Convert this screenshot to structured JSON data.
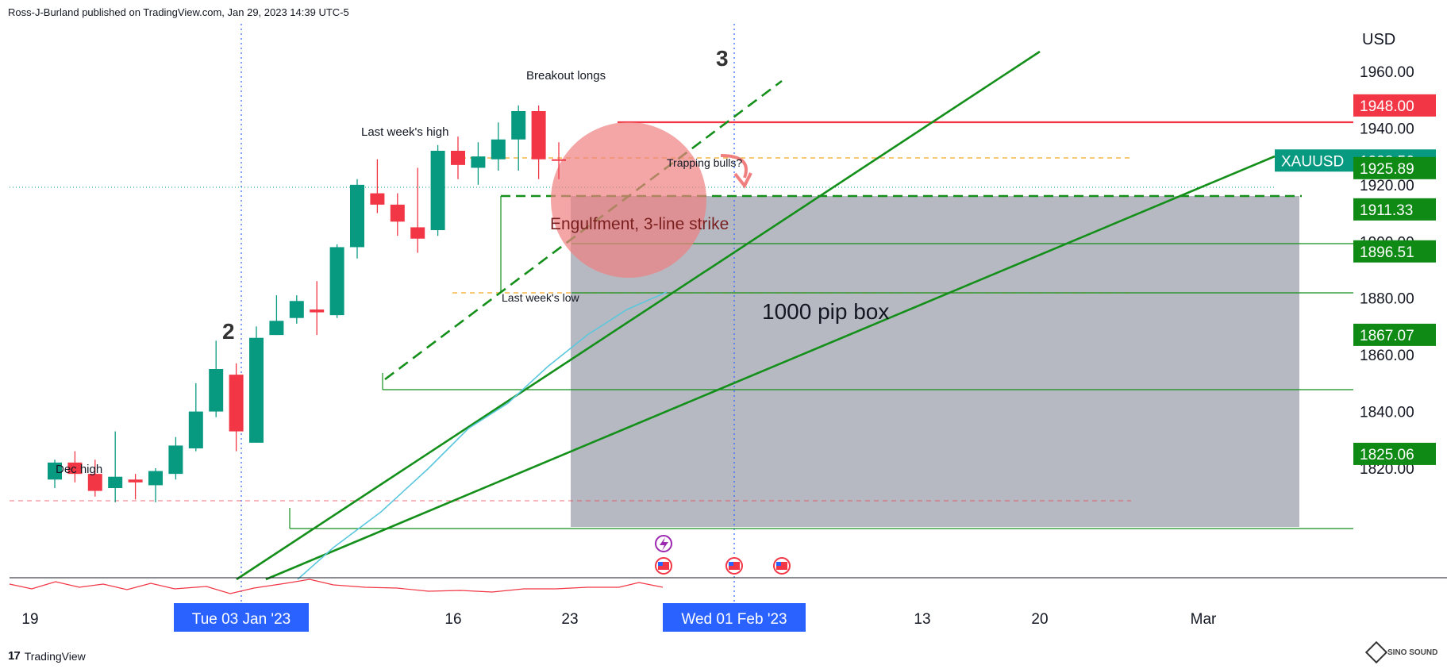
{
  "header": {
    "byline": "Ross-J-Burland published on TradingView.com, Jan 29, 2023 14:39 UTC-5"
  },
  "footer": {
    "logo_text": "TradingView",
    "logo_mark": "17",
    "watermark_text": "SINO SOUND"
  },
  "colors": {
    "bull": "#089981",
    "bear": "#f23645",
    "trend_green": "#138f1a",
    "ma_line": "#5bc7dd",
    "box_gray": "#b2b5be",
    "circle": "#f08080",
    "orange_dash": "#f5a623",
    "red_line": "#f23645",
    "blue_dot": "#2962ff",
    "axis_text": "#131722"
  },
  "chart_data": {
    "type": "candlestick",
    "symbol": "XAUUSD",
    "currency": "USD",
    "ylim": [
      1812,
      1975
    ],
    "y_ticks": [
      1820,
      1840,
      1860,
      1880,
      1900,
      1920,
      1940,
      1960
    ],
    "y_tick_labels": [
      "1820.00",
      "1840.00",
      "1860.00",
      "1880.00",
      "1900.00",
      "1920.00",
      "1940.00",
      "1960.00"
    ],
    "x_tick_labels": [
      "19",
      "16",
      "23",
      "13",
      "20",
      "Mar"
    ],
    "x_highlight_labels": [
      "Tue 03 Jan '23",
      "Wed 01 Feb '23"
    ],
    "candles": [
      {
        "date": "2022-12-20",
        "o": 1816,
        "h": 1823,
        "l": 1813,
        "c": 1822
      },
      {
        "date": "2022-12-21",
        "o": 1822,
        "h": 1826,
        "l": 1815,
        "c": 1818
      },
      {
        "date": "2022-12-22",
        "o": 1818,
        "h": 1823,
        "l": 1810,
        "c": 1812
      },
      {
        "date": "2022-12-27",
        "o": 1813,
        "h": 1833,
        "l": 1808,
        "c": 1817
      },
      {
        "date": "2022-12-28",
        "o": 1816,
        "h": 1818,
        "l": 1809,
        "c": 1815
      },
      {
        "date": "2022-12-29",
        "o": 1814,
        "h": 1820,
        "l": 1808,
        "c": 1819
      },
      {
        "date": "2022-12-30",
        "o": 1818,
        "h": 1831,
        "l": 1816,
        "c": 1828
      },
      {
        "date": "2023-01-03",
        "o": 1827,
        "h": 1850,
        "l": 1826,
        "c": 1840
      },
      {
        "date": "2023-01-04",
        "o": 1840,
        "h": 1865,
        "l": 1838,
        "c": 1855
      },
      {
        "date": "2023-01-05",
        "o": 1853,
        "h": 1857,
        "l": 1826,
        "c": 1833
      },
      {
        "date": "2023-01-06",
        "o": 1829,
        "h": 1870,
        "l": 1829,
        "c": 1866
      },
      {
        "date": "2023-01-09",
        "o": 1867,
        "h": 1881,
        "l": 1867,
        "c": 1872
      },
      {
        "date": "2023-01-10",
        "o": 1873,
        "h": 1881,
        "l": 1871,
        "c": 1879
      },
      {
        "date": "2023-01-11",
        "o": 1876,
        "h": 1886,
        "l": 1867,
        "c": 1875
      },
      {
        "date": "2023-01-12",
        "o": 1874,
        "h": 1899,
        "l": 1873,
        "c": 1898
      },
      {
        "date": "2023-01-13",
        "o": 1898,
        "h": 1922,
        "l": 1894,
        "c": 1920
      },
      {
        "date": "2023-01-16",
        "o": 1917,
        "h": 1929,
        "l": 1910,
        "c": 1913
      },
      {
        "date": "2023-01-17",
        "o": 1913,
        "h": 1917,
        "l": 1902,
        "c": 1907
      },
      {
        "date": "2023-01-18",
        "o": 1905,
        "h": 1926,
        "l": 1896,
        "c": 1901
      },
      {
        "date": "2023-01-19",
        "o": 1904,
        "h": 1934,
        "l": 1902,
        "c": 1932
      },
      {
        "date": "2023-01-20",
        "o": 1932,
        "h": 1937,
        "l": 1922,
        "c": 1927
      },
      {
        "date": "2023-01-23",
        "o": 1926,
        "h": 1935,
        "l": 1920,
        "c": 1930
      },
      {
        "date": "2023-01-24",
        "o": 1929,
        "h": 1942,
        "l": 1925,
        "c": 1936
      },
      {
        "date": "2023-01-25",
        "o": 1936,
        "h": 1948,
        "l": 1925,
        "c": 1946
      },
      {
        "date": "2023-01-26",
        "o": 1946,
        "h": 1948,
        "l": 1922,
        "c": 1929
      },
      {
        "date": "2023-01-27",
        "o": 1929,
        "h": 1935,
        "l": 1922,
        "c": 1928.56
      }
    ],
    "price_levels": [
      {
        "value": 1948.0,
        "label": "1948.00",
        "style": "red"
      },
      {
        "value": 1928.56,
        "label": "XAUUSD",
        "label_value": "1928.56",
        "style": "current"
      },
      {
        "value": 1925.89,
        "label": "1925.89",
        "style": "green"
      },
      {
        "value": 1911.33,
        "label": "1911.33",
        "style": "green"
      },
      {
        "value": 1896.51,
        "label": "1896.51",
        "style": "green"
      },
      {
        "value": 1867.07,
        "label": "1867.07",
        "style": "green"
      },
      {
        "value": 1825.06,
        "label": "1825.06",
        "style": "green"
      }
    ],
    "annotations": {
      "breakout_longs": "Breakout longs",
      "last_week_high": "Last week's high",
      "trapping_bulls": "Trapping bulls?",
      "engulfment": "Engulfment, 3-line strike",
      "last_week_low": "Last week's low",
      "pip_box": "1000 pip box",
      "dec_high": "Dec high",
      "wave_2": "2",
      "wave_3": "3"
    }
  }
}
